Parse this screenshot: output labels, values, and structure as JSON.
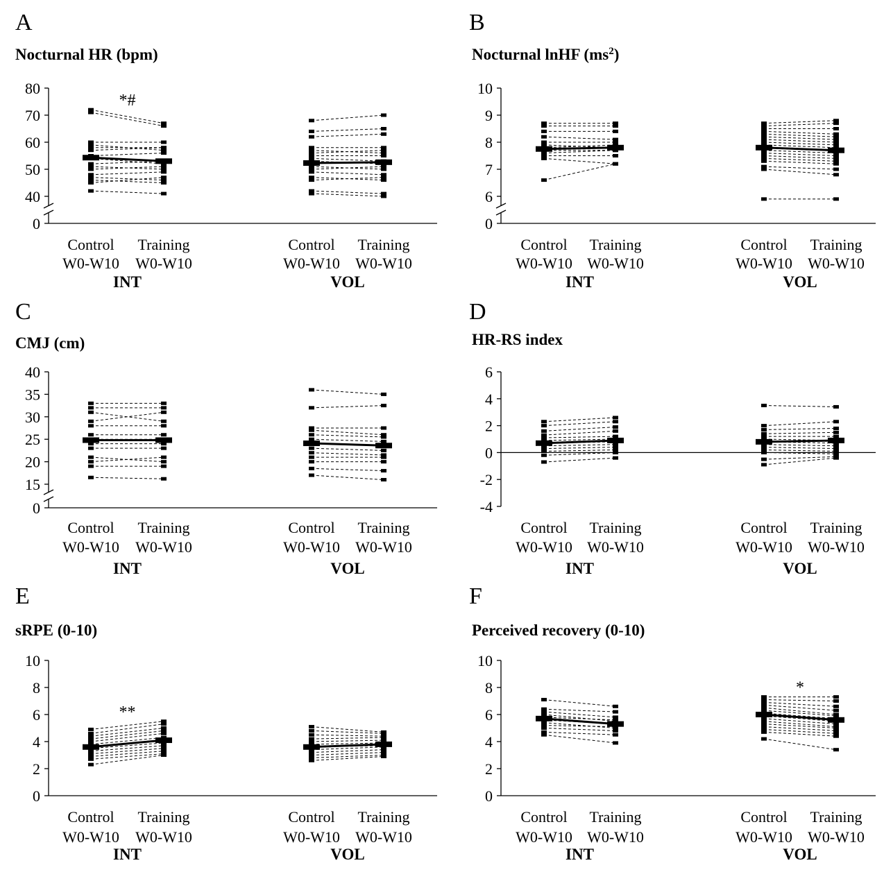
{
  "chart_data": [
    {
      "letter": "A",
      "title": "Nocturnal HR (bpm)",
      "type": "line",
      "yticks": [
        40,
        50,
        60,
        70,
        80
      ],
      "ylim": [
        40,
        80
      ],
      "zero_label": "0",
      "axis_break": true,
      "zero_line": false,
      "conditions": [
        {
          "label1": "Control",
          "label2": "W0-W10"
        },
        {
          "label1": "Training",
          "label2": "W0-W10"
        }
      ],
      "groups": [
        {
          "name": "INT",
          "series": [
            [
              72,
              67
            ],
            [
              71,
              66
            ],
            [
              60,
              60
            ],
            [
              59,
              57
            ],
            [
              58,
              58
            ],
            [
              57,
              58
            ],
            [
              55,
              56
            ],
            [
              54,
              52
            ],
            [
              52,
              53
            ],
            [
              51,
              50
            ],
            [
              50,
              51
            ],
            [
              48,
              49
            ],
            [
              47,
              46
            ],
            [
              46,
              45
            ],
            [
              45,
              47
            ],
            [
              42,
              41
            ]
          ],
          "mean": [
            54.3,
            53
          ],
          "annotation": "*#"
        },
        {
          "name": "VOL",
          "series": [
            [
              68,
              70
            ],
            [
              64,
              65
            ],
            [
              62,
              63
            ],
            [
              58,
              58
            ],
            [
              57,
              56
            ],
            [
              56,
              57
            ],
            [
              55,
              55
            ],
            [
              54,
              53
            ],
            [
              53,
              52
            ],
            [
              52,
              53
            ],
            [
              51,
              50
            ],
            [
              50,
              51
            ],
            [
              49,
              48
            ],
            [
              47,
              46
            ],
            [
              46,
              47
            ],
            [
              42,
              41
            ],
            [
              41,
              40
            ]
          ],
          "mean": [
            52.3,
            52.6
          ],
          "annotation": ""
        }
      ]
    },
    {
      "letter": "B",
      "title": "Nocturnal lnHF (ms",
      "title_sup": "2",
      "title_end": ")",
      "type": "line",
      "yticks": [
        6,
        7,
        8,
        9,
        10
      ],
      "ylim": [
        6,
        10
      ],
      "zero_label": "0",
      "axis_break": true,
      "zero_line": false,
      "conditions": [
        {
          "label1": "Control",
          "label2": "W0-W10"
        },
        {
          "label1": "Training",
          "label2": "W0-W10"
        }
      ],
      "groups": [
        {
          "name": "INT",
          "series": [
            [
              8.7,
              8.7
            ],
            [
              8.6,
              8.6
            ],
            [
              8.4,
              8.4
            ],
            [
              8.2,
              8.1
            ],
            [
              8.0,
              8.0
            ],
            [
              7.9,
              7.8
            ],
            [
              7.8,
              7.9
            ],
            [
              7.7,
              7.7
            ],
            [
              7.6,
              7.7
            ],
            [
              7.5,
              7.5
            ],
            [
              7.4,
              7.2
            ],
            [
              6.6,
              7.2
            ]
          ],
          "mean": [
            7.75,
            7.8
          ],
          "annotation": ""
        },
        {
          "name": "VOL",
          "series": [
            [
              8.7,
              8.8
            ],
            [
              8.6,
              8.7
            ],
            [
              8.5,
              8.5
            ],
            [
              8.4,
              8.3
            ],
            [
              8.3,
              8.2
            ],
            [
              8.2,
              8.1
            ],
            [
              8.1,
              8.0
            ],
            [
              8.0,
              7.9
            ],
            [
              7.9,
              7.8
            ],
            [
              7.8,
              7.7
            ],
            [
              7.7,
              7.6
            ],
            [
              7.6,
              7.5
            ],
            [
              7.5,
              7.4
            ],
            [
              7.4,
              7.3
            ],
            [
              7.3,
              7.2
            ],
            [
              7.1,
              7.0
            ],
            [
              7.0,
              6.8
            ],
            [
              5.9,
              5.9
            ]
          ],
          "mean": [
            7.8,
            7.7
          ],
          "annotation": ""
        }
      ]
    },
    {
      "letter": "C",
      "title": "CMJ (cm)",
      "type": "line",
      "yticks": [
        15,
        20,
        25,
        30,
        35,
        40
      ],
      "ylim": [
        15,
        40
      ],
      "zero_label": "0",
      "axis_break": true,
      "zero_line": false,
      "conditions": [
        {
          "label1": "Control",
          "label2": "W0-W10"
        },
        {
          "label1": "Training",
          "label2": "W0-W10"
        }
      ],
      "groups": [
        {
          "name": "INT",
          "series": [
            [
              33,
              33
            ],
            [
              32,
              32
            ],
            [
              31,
              29
            ],
            [
              29,
              31
            ],
            [
              28,
              28
            ],
            [
              26,
              26
            ],
            [
              25,
              25
            ],
            [
              24,
              24
            ],
            [
              23,
              23
            ],
            [
              21,
              20
            ],
            [
              20,
              21
            ],
            [
              19,
              19
            ],
            [
              16.5,
              16.2
            ]
          ],
          "mean": [
            24.8,
            24.8
          ],
          "annotation": ""
        },
        {
          "name": "VOL",
          "series": [
            [
              36,
              35
            ],
            [
              32,
              32.5
            ],
            [
              27.5,
              27.5
            ],
            [
              27,
              26
            ],
            [
              26,
              25.5
            ],
            [
              25,
              24.5
            ],
            [
              24,
              23.5
            ],
            [
              23,
              22.5
            ],
            [
              22,
              21.5
            ],
            [
              21,
              21
            ],
            [
              20,
              20
            ],
            [
              18.5,
              18
            ],
            [
              17,
              16
            ]
          ],
          "mean": [
            24.1,
            23.6
          ],
          "annotation": ""
        }
      ]
    },
    {
      "letter": "D",
      "title": "HR-RS index",
      "type": "line",
      "yticks": [
        -4,
        -2,
        0,
        2,
        4,
        6
      ],
      "ylim": [
        -4,
        6
      ],
      "zero_label": "",
      "axis_break": false,
      "zero_line": true,
      "conditions": [
        {
          "label1": "Control",
          "label2": "W0-W10"
        },
        {
          "label1": "Training",
          "label2": "W0-W10"
        }
      ],
      "groups": [
        {
          "name": "INT",
          "series": [
            [
              2.3,
              2.6
            ],
            [
              2.0,
              2.3
            ],
            [
              1.6,
              1.9
            ],
            [
              1.3,
              1.6
            ],
            [
              1.1,
              1.2
            ],
            [
              0.9,
              1.0
            ],
            [
              0.7,
              0.8
            ],
            [
              0.5,
              0.6
            ],
            [
              0.3,
              0.4
            ],
            [
              0.1,
              0.2
            ],
            [
              -0.2,
              0.0
            ],
            [
              -0.7,
              -0.4
            ]
          ],
          "mean": [
            0.7,
            0.9
          ],
          "annotation": ""
        },
        {
          "name": "VOL",
          "series": [
            [
              3.5,
              3.4
            ],
            [
              2.0,
              2.3
            ],
            [
              1.7,
              1.8
            ],
            [
              1.4,
              1.5
            ],
            [
              1.2,
              1.2
            ],
            [
              1.0,
              0.9
            ],
            [
              0.8,
              0.7
            ],
            [
              0.6,
              0.5
            ],
            [
              0.4,
              0.3
            ],
            [
              0.2,
              0.1
            ],
            [
              0.0,
              -0.1
            ],
            [
              -0.5,
              -0.3
            ],
            [
              -0.9,
              -0.4
            ]
          ],
          "mean": [
            0.8,
            0.9
          ],
          "annotation": ""
        }
      ]
    },
    {
      "letter": "E",
      "title": "sRPE (0-10)",
      "type": "line",
      "yticks": [
        0,
        2,
        4,
        6,
        8,
        10
      ],
      "ylim": [
        0,
        10
      ],
      "zero_label": "",
      "axis_break": false,
      "zero_line": false,
      "conditions": [
        {
          "label1": "Control",
          "label2": "W0-W10"
        },
        {
          "label1": "Training",
          "label2": "W0-W10"
        }
      ],
      "groups": [
        {
          "name": "INT",
          "series": [
            [
              4.9,
              5.5
            ],
            [
              4.6,
              5.3
            ],
            [
              4.4,
              5.0
            ],
            [
              4.2,
              4.8
            ],
            [
              4.0,
              4.6
            ],
            [
              3.8,
              4.3
            ],
            [
              3.6,
              4.1
            ],
            [
              3.5,
              3.9
            ],
            [
              3.3,
              3.7
            ],
            [
              3.1,
              3.5
            ],
            [
              2.9,
              3.3
            ],
            [
              2.7,
              3.1
            ],
            [
              2.3,
              3.0
            ]
          ],
          "mean": [
            3.6,
            4.1
          ],
          "annotation": "**"
        },
        {
          "name": "VOL",
          "series": [
            [
              5.1,
              4.7
            ],
            [
              4.8,
              4.6
            ],
            [
              4.5,
              4.4
            ],
            [
              4.2,
              4.3
            ],
            [
              4.0,
              4.1
            ],
            [
              3.8,
              3.9
            ],
            [
              3.6,
              3.7
            ],
            [
              3.4,
              3.6
            ],
            [
              3.2,
              3.4
            ],
            [
              3.0,
              3.2
            ],
            [
              2.8,
              3.0
            ],
            [
              2.6,
              2.9
            ]
          ],
          "mean": [
            3.6,
            3.8
          ],
          "annotation": ""
        }
      ]
    },
    {
      "letter": "F",
      "title": "Perceived recovery (0-10)",
      "type": "line",
      "yticks": [
        0,
        2,
        4,
        6,
        8,
        10
      ],
      "ylim": [
        0,
        10
      ],
      "zero_label": "",
      "axis_break": false,
      "zero_line": false,
      "conditions": [
        {
          "label1": "Control",
          "label2": "W0-W10"
        },
        {
          "label1": "Training",
          "label2": "W0-W10"
        }
      ],
      "groups": [
        {
          "name": "INT",
          "series": [
            [
              7.1,
              6.6
            ],
            [
              6.4,
              6.2
            ],
            [
              6.2,
              5.8
            ],
            [
              6.0,
              5.5
            ],
            [
              5.8,
              5.6
            ],
            [
              5.6,
              5.3
            ],
            [
              5.4,
              5.0
            ],
            [
              5.2,
              5.1
            ],
            [
              5.0,
              4.8
            ],
            [
              4.7,
              4.5
            ],
            [
              4.5,
              3.9
            ]
          ],
          "mean": [
            5.7,
            5.3
          ],
          "annotation": ""
        },
        {
          "name": "VOL",
          "series": [
            [
              7.3,
              7.3
            ],
            [
              7.1,
              7.0
            ],
            [
              6.9,
              6.6
            ],
            [
              6.7,
              6.3
            ],
            [
              6.5,
              6.0
            ],
            [
              6.3,
              5.9
            ],
            [
              6.1,
              5.7
            ],
            [
              5.9,
              5.5
            ],
            [
              5.7,
              5.3
            ],
            [
              5.5,
              5.1
            ],
            [
              5.3,
              5.0
            ],
            [
              5.1,
              4.8
            ],
            [
              4.9,
              4.6
            ],
            [
              4.7,
              4.4
            ],
            [
              4.2,
              3.4
            ]
          ],
          "mean": [
            6.0,
            5.6
          ],
          "annotation": "*"
        }
      ]
    }
  ]
}
